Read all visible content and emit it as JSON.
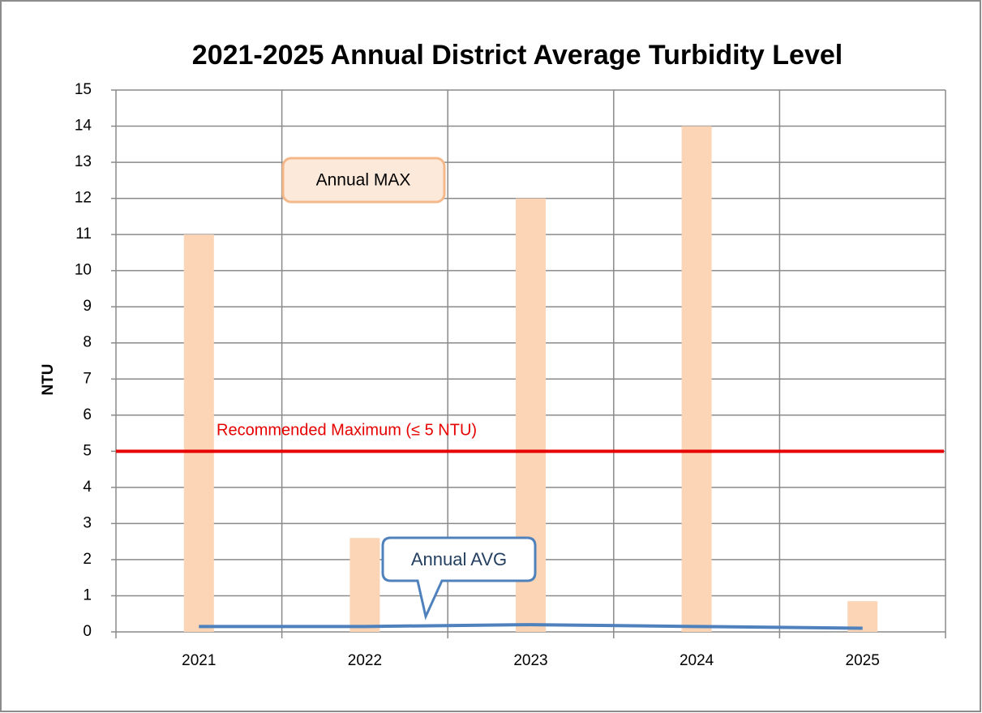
{
  "chart_data": {
    "type": "bar",
    "title": "2021-2025 Annual District Average Turbidity Level",
    "y_label": "NTU",
    "categories": [
      "2021",
      "2022",
      "2023",
      "2024",
      "2025"
    ],
    "series": [
      {
        "name": "Annual MAX",
        "type": "bar",
        "color": "#fbd5b5",
        "values": [
          11,
          2.6,
          12,
          14,
          0.85
        ]
      },
      {
        "name": "Annual AVG",
        "type": "line",
        "color": "#4f81bd",
        "values": [
          0.15,
          0.15,
          0.2,
          0.15,
          0.1
        ]
      }
    ],
    "reference_lines": [
      {
        "value": 5,
        "label": "Recommended Maximum  (≤ 5 NTU)",
        "color": "#e60000"
      }
    ],
    "ylim": [
      0,
      15
    ],
    "yticks": [
      0,
      1,
      2,
      3,
      4,
      5,
      6,
      7,
      8,
      9,
      10,
      11,
      12,
      13,
      14,
      15
    ],
    "grid": true
  }
}
